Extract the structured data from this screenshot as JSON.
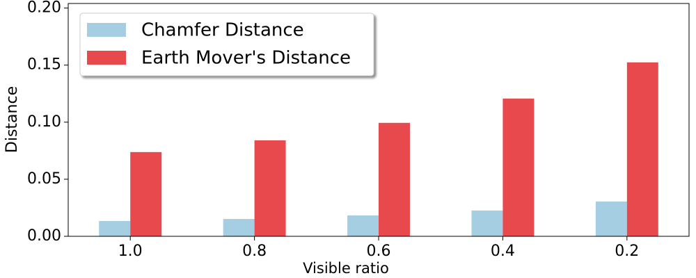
{
  "chart_data": {
    "type": "bar",
    "x_label": "Visible ratio",
    "y_label": "Distance",
    "categories": [
      "1.0",
      "0.8",
      "0.6",
      "0.4",
      "0.2"
    ],
    "series": [
      {
        "name": "Chamfer Distance",
        "color": "#a6cee3",
        "values": [
          0.0134,
          0.0152,
          0.0183,
          0.0226,
          0.0305
        ]
      },
      {
        "name": "Earth Mover's Distance",
        "color": "#e8494c",
        "values": [
          0.0738,
          0.0841,
          0.0994,
          0.1207,
          0.1524
        ]
      }
    ],
    "ylim": [
      0,
      0.204
    ],
    "yticks": [
      {
        "value": 0,
        "label": "0.00"
      },
      {
        "value": 0.05,
        "label": "0.05"
      },
      {
        "value": 0.1,
        "label": "0.10"
      },
      {
        "value": 0.15,
        "label": "0.15"
      },
      {
        "value": 0.2,
        "label": "0.20"
      }
    ],
    "legend": "upper left",
    "grid": false
  }
}
